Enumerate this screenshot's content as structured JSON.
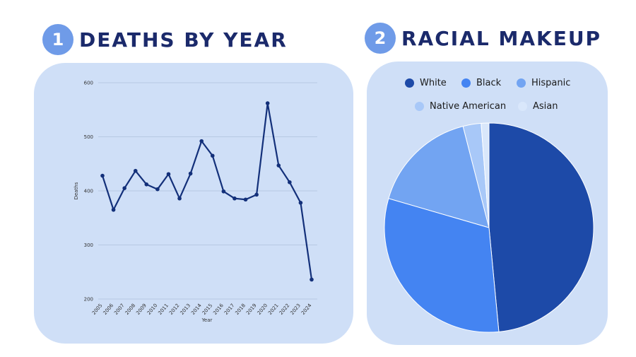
{
  "headings": {
    "left": {
      "number": "1",
      "title": "DEATHS BY YEAR"
    },
    "right": {
      "number": "2",
      "title": "RACIAL MAKEUP"
    }
  },
  "colors": {
    "line": "#13307a",
    "grid": "#9fb3cf",
    "panel": "#cfdff7"
  },
  "chart_data": [
    {
      "type": "line",
      "title": "",
      "xlabel": "Year",
      "ylabel": "Deaths",
      "ylim": [
        200,
        600
      ],
      "yticks": [
        200,
        300,
        400,
        500,
        600
      ],
      "grid": true,
      "categories": [
        "2005",
        "2006",
        "2007",
        "2008",
        "2009",
        "2010",
        "2011",
        "2012",
        "2013",
        "2014",
        "2015",
        "2016",
        "2017",
        "2018",
        "2019",
        "2020",
        "2021",
        "2022",
        "2023",
        "2024"
      ],
      "series": [
        {
          "values": [
            428,
            365,
            405,
            437,
            412,
            403,
            431,
            386,
            432,
            492,
            465,
            399,
            386,
            384,
            393,
            562,
            447,
            416,
            378,
            236
          ]
        }
      ]
    },
    {
      "type": "pie",
      "title": "",
      "legend_position": "top",
      "slices": [
        {
          "label": "White",
          "value": 48.5,
          "color": "#1d4aa8"
        },
        {
          "label": "Black",
          "value": 31.0,
          "color": "#4484f2"
        },
        {
          "label": "Hispanic",
          "value": 16.5,
          "color": "#72a4f2"
        },
        {
          "label": "Native American",
          "value": 2.8,
          "color": "#a8c8f8"
        },
        {
          "label": "Asian",
          "value": 1.2,
          "color": "#d9e7fb"
        }
      ]
    }
  ]
}
